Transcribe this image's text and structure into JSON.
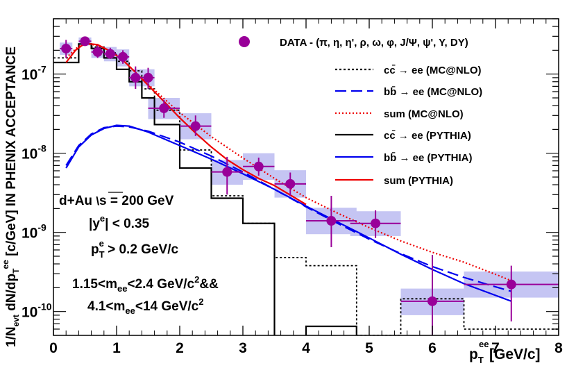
{
  "chart_data": {
    "type": "line",
    "xlabel": "p_T^ee [GeV/c]",
    "ylabel": "1/N_evt dN/dp_T^ee [c/GeV] IN PHENIX ACCEPTANCE",
    "xlim": [
      0,
      8
    ],
    "ylim": [
      5e-11,
      5e-07
    ],
    "yscale": "log",
    "x_ticks": [
      0,
      1,
      2,
      3,
      4,
      5,
      6,
      7,
      8
    ],
    "y_ticks": [
      {
        "value": 1e-10,
        "label": "10-10"
      },
      {
        "value": 1e-09,
        "label": "10-9"
      },
      {
        "value": 1e-08,
        "label": "10-8"
      },
      {
        "value": 1e-07,
        "label": "10-7"
      }
    ],
    "legend_position": "top-right",
    "annotations": [
      {
        "text": "d+Au   √s = 200 GeV"
      },
      {
        "text": "|y^e| < 0.35"
      },
      {
        "text": "p_T^e > 0.2 GeV/c"
      },
      {
        "text": "1.15<m_ee<2.4 GeV/c^2&&"
      },
      {
        "text": "4.1<m_ee<14 GeV/c^2"
      }
    ],
    "data_points": {
      "name": "DATA - (π, η, η', ρ, ω, φ, J/Ψ, ψ', Υ, DY)",
      "color": "#990099",
      "sys_color": "#c5c5f3",
      "points": [
        {
          "x": 0.2,
          "y": 2.1e-07,
          "xerr": 0.1,
          "yerr_low": 1.6e-07,
          "yerr_high": 2.7e-07,
          "sys_low": 1.75e-07,
          "sys_high": 2.5e-07
        },
        {
          "x": 0.5,
          "y": 2.6e-07,
          "xerr": 0.1,
          "yerr_low": 2.35e-07,
          "yerr_high": 2.95e-07,
          "sys_low": 2.3e-07,
          "sys_high": 2.9e-07
        },
        {
          "x": 0.7,
          "y": 1.9e-07,
          "xerr": 0.1,
          "yerr_low": 1.6e-07,
          "yerr_high": 2.3e-07,
          "sys_low": 1.6e-07,
          "sys_high": 2.2e-07
        },
        {
          "x": 0.9,
          "y": 1.8e-07,
          "xerr": 0.1,
          "yerr_low": 1.55e-07,
          "yerr_high": 2.15e-07,
          "sys_low": 1.45e-07,
          "sys_high": 2.2e-07
        },
        {
          "x": 1.1,
          "y": 1.65e-07,
          "xerr": 0.1,
          "yerr_low": 1.35e-07,
          "yerr_high": 2e-07,
          "sys_low": 1.25e-07,
          "sys_high": 2.05e-07
        },
        {
          "x": 1.3,
          "y": 9e-08,
          "xerr": 0.1,
          "yerr_low": 6.5e-08,
          "yerr_high": 1.25e-07,
          "sys_low": 7e-08,
          "sys_high": 1.15e-07
        },
        {
          "x": 1.5,
          "y": 9e-08,
          "xerr": 0.1,
          "yerr_low": 6.5e-08,
          "yerr_high": 1.2e-07,
          "sys_low": 7e-08,
          "sys_high": 1.15e-07
        },
        {
          "x": 1.75,
          "y": 3.7e-08,
          "xerr": 0.25,
          "yerr_low": 2.8e-08,
          "yerr_high": 4.7e-08,
          "sys_low": 2.7e-08,
          "sys_high": 5e-08
        },
        {
          "x": 2.25,
          "y": 2.2e-08,
          "xerr": 0.25,
          "yerr_low": 1.65e-08,
          "yerr_high": 3e-08,
          "sys_low": 1.5e-08,
          "sys_high": 3.2e-08
        },
        {
          "x": 2.75,
          "y": 5.8e-09,
          "xerr": 0.25,
          "yerr_low": 3e-09,
          "yerr_high": 9e-09,
          "sys_low": 4e-09,
          "sys_high": 8.2e-09
        },
        {
          "x": 3.25,
          "y": 6.8e-09,
          "xerr": 0.25,
          "yerr_low": 5.2e-09,
          "yerr_high": 8.8e-09,
          "sys_low": 4.6e-09,
          "sys_high": 1e-08
        },
        {
          "x": 3.75,
          "y": 4.1e-09,
          "xerr": 0.25,
          "yerr_low": 2.9e-09,
          "yerr_high": 5.7e-09,
          "sys_low": 2.75e-09,
          "sys_high": 6.1e-09
        },
        {
          "x": 4.4,
          "y": 1.4e-09,
          "xerr": 0.4,
          "yerr_low": 6.5e-10,
          "yerr_high": 2.9e-09,
          "sys_low": 9.5e-10,
          "sys_high": 2.05e-09
        },
        {
          "x": 5.1,
          "y": 1.3e-09,
          "xerr": 0.4,
          "yerr_low": 8.5e-10,
          "yerr_high": 1.9e-09,
          "sys_low": 9e-10,
          "sys_high": 1.85e-09
        },
        {
          "x": 6.0,
          "y": 1.35e-10,
          "xerr": 0.5,
          "yerr_low": 5e-11,
          "yerr_high": 5.2e-10,
          "sys_low": 9e-11,
          "sys_high": 1.95e-10
        },
        {
          "x": 7.25,
          "y": 2.2e-10,
          "xerr": 0.75,
          "yerr_low": 7.5e-11,
          "yerr_high": 3.8e-10,
          "sys_low": 1.5e-10,
          "sys_high": 3.2e-10
        }
      ]
    },
    "series": [
      {
        "name": "cc̄ → ee (MC@NLO)",
        "color": "#000000",
        "style": "dotted-fine",
        "kind": "hist",
        "edges": [
          0,
          0.4,
          0.6,
          0.8,
          1.0,
          1.2,
          1.4,
          1.6,
          2.0,
          2.5,
          3.0,
          3.5,
          4.0,
          4.8,
          5.5,
          6.5,
          8.0
        ],
        "values": [
          1.6e-07,
          2.4e-07,
          2.2e-07,
          1.85e-07,
          1.45e-07,
          1.1e-07,
          6.5e-08,
          3.5e-08,
          1.1e-08,
          2.9e-09,
          1.3e-09,
          4.8e-10,
          3.8e-10,
          5e-11,
          1.45e-10,
          6e-11
        ]
      },
      {
        "name": "bb̄ → ee (MC@NLO)",
        "color": "#0000ee",
        "style": "long-dash",
        "kind": "curve",
        "x": [
          0.2,
          0.4,
          0.6,
          0.8,
          1.0,
          1.2,
          1.5,
          2.0,
          2.5,
          3.0,
          3.5,
          4.0,
          4.5,
          5.0,
          5.5,
          6.0,
          6.5,
          7.0,
          7.25
        ],
        "y": [
          7e-09,
          1.25e-08,
          1.75e-08,
          2.1e-08,
          2.2e-08,
          2.15e-08,
          1.9e-08,
          1.38e-08,
          9.2e-09,
          5.8e-09,
          3.5e-09,
          2.1e-09,
          1.3e-09,
          8.2e-10,
          5.4e-10,
          3.7e-10,
          2.7e-10,
          2.05e-10,
          1.8e-10
        ]
      },
      {
        "name": "sum (MC@NLO)",
        "color": "#ee0000",
        "style": "dotted",
        "kind": "curve",
        "x": [
          0.2,
          0.4,
          0.55,
          0.7,
          0.9,
          1.1,
          1.3,
          1.5,
          1.75,
          2.0,
          2.25,
          2.5,
          3.0,
          3.5,
          4.0,
          4.5,
          5.0,
          5.5,
          6.0,
          6.5,
          7.0,
          7.25
        ],
        "y": [
          1.6e-07,
          2.25e-07,
          2.4e-07,
          2.3e-07,
          1.95e-07,
          1.5e-07,
          1.05e-07,
          7.4e-08,
          4.9e-08,
          3.25e-08,
          2.3e-08,
          1.62e-08,
          8.7e-09,
          4.8e-09,
          2.75e-09,
          1.75e-09,
          1.15e-09,
          7.8e-10,
          5.6e-10,
          4.2e-10,
          2.95e-10,
          2.45e-10
        ]
      },
      {
        "name": "cc̄ → ee (PYTHIA)",
        "color": "#000000",
        "style": "solid",
        "kind": "hist",
        "edges": [
          0,
          0.4,
          0.6,
          0.8,
          1.0,
          1.2,
          1.4,
          1.6,
          2.0,
          2.5,
          3.0,
          3.5,
          4.0,
          4.8,
          8.0
        ],
        "values": [
          1.4e-07,
          2.4e-07,
          2.1e-07,
          1.6e-07,
          1.15e-07,
          8e-08,
          5e-08,
          2.3e-08,
          6.5e-09,
          2.7e-09,
          1.3e-09,
          3.5e-11,
          6.5e-11,
          3.5e-11
        ]
      },
      {
        "name": "bb̄ → ee (PYTHIA)",
        "color": "#0000ee",
        "style": "solid",
        "kind": "curve",
        "x": [
          0.2,
          0.4,
          0.6,
          0.8,
          1.0,
          1.2,
          1.5,
          2.0,
          2.5,
          3.0,
          3.5,
          4.0,
          4.5,
          5.0,
          5.5,
          6.0,
          6.5,
          7.0,
          7.25
        ],
        "y": [
          6.5e-09,
          1.2e-08,
          1.7e-08,
          2.05e-08,
          2.25e-08,
          2.2e-08,
          1.85e-08,
          1.25e-08,
          8.4e-09,
          5.5e-09,
          3.5e-09,
          2.15e-09,
          1.35e-09,
          8.5e-10,
          5.3e-10,
          3.4e-10,
          2.25e-10,
          1.6e-10,
          1.35e-10
        ]
      },
      {
        "name": "sum (PYTHIA)",
        "color": "#ee0000",
        "style": "solid",
        "kind": "curve",
        "x": [
          0.2,
          0.35,
          0.5,
          0.7,
          0.9,
          1.1,
          1.3,
          1.5,
          1.75,
          2.0,
          2.25,
          2.5,
          2.75,
          3.0,
          3.25,
          3.5,
          4.0
        ],
        "y": [
          1.4e-07,
          2e-07,
          2.45e-07,
          2.35e-07,
          1.95e-07,
          1.5e-07,
          1.05e-07,
          7.2e-08,
          4.5e-08,
          2.8e-08,
          1.8e-08,
          1.2e-08,
          8.3e-09,
          6.2e-09,
          4.8e-09,
          3.9e-09,
          2.25e-09
        ]
      }
    ]
  }
}
